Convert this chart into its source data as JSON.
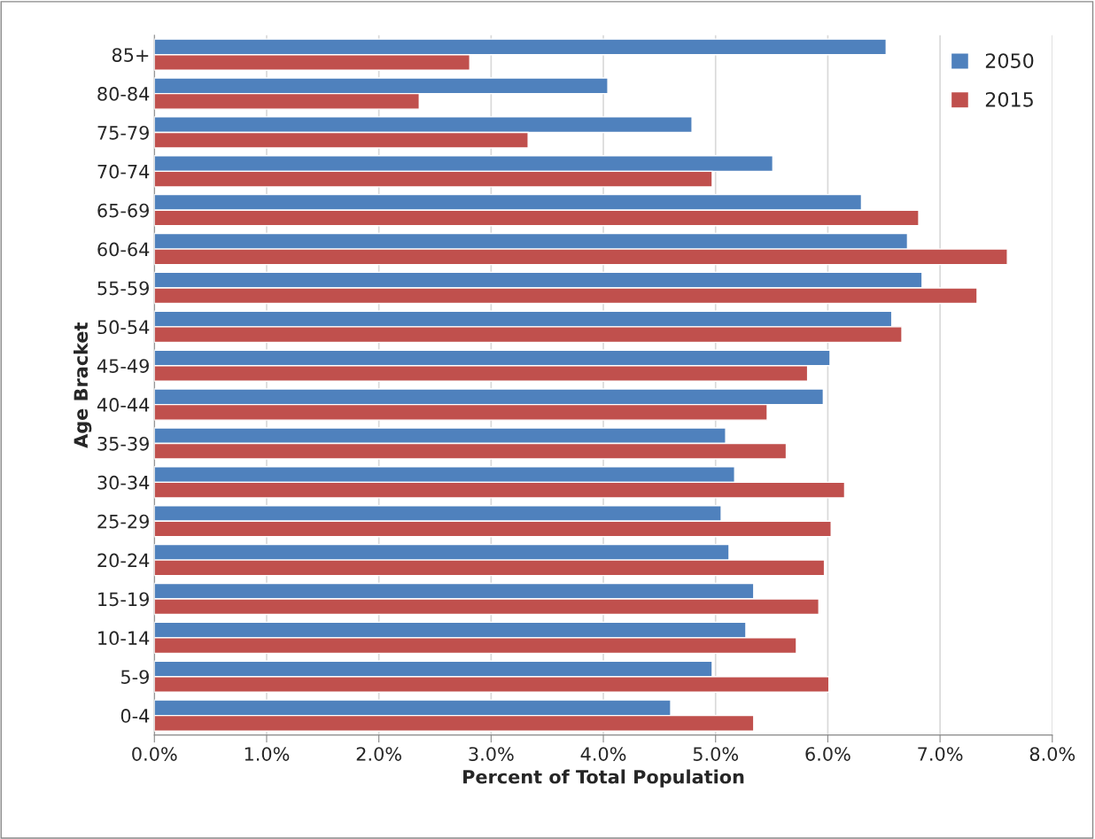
{
  "chart_data": {
    "type": "bar",
    "orientation": "horizontal",
    "xlabel": "Percent of Total Population",
    "ylabel": "Age Bracket",
    "categories": [
      "85+",
      "80-84",
      "75-79",
      "70-74",
      "65-69",
      "60-64",
      "55-59",
      "50-54",
      "45-49",
      "40-44",
      "35-39",
      "30-34",
      "25-29",
      "20-24",
      "15-19",
      "10-14",
      "5-9",
      "0-4"
    ],
    "series": [
      {
        "name": "2050",
        "color": "#4f81bd",
        "values": [
          6.52,
          4.04,
          4.79,
          5.51,
          6.3,
          6.71,
          6.84,
          6.57,
          6.02,
          5.96,
          5.09,
          5.17,
          5.05,
          5.12,
          5.34,
          5.27,
          4.97,
          4.6
        ]
      },
      {
        "name": "2015",
        "color": "#c0504d",
        "values": [
          2.81,
          2.36,
          3.33,
          4.97,
          6.81,
          7.6,
          7.33,
          6.66,
          5.82,
          5.46,
          5.63,
          6.15,
          6.03,
          5.97,
          5.92,
          5.72,
          6.01,
          5.34
        ]
      }
    ],
    "xlim": [
      0,
      8
    ],
    "xticks": [
      {
        "value": 0,
        "label": "0.0%"
      },
      {
        "value": 1,
        "label": "1.0%"
      },
      {
        "value": 2,
        "label": "2.0%"
      },
      {
        "value": 3,
        "label": "3.0%"
      },
      {
        "value": 4,
        "label": "4.0%"
      },
      {
        "value": 5,
        "label": "5.0%"
      },
      {
        "value": 6,
        "label": "6.0%"
      },
      {
        "value": 7,
        "label": "7.0%"
      },
      {
        "value": 8,
        "label": "8.0%"
      }
    ],
    "grid": "x",
    "legend": "top right"
  }
}
